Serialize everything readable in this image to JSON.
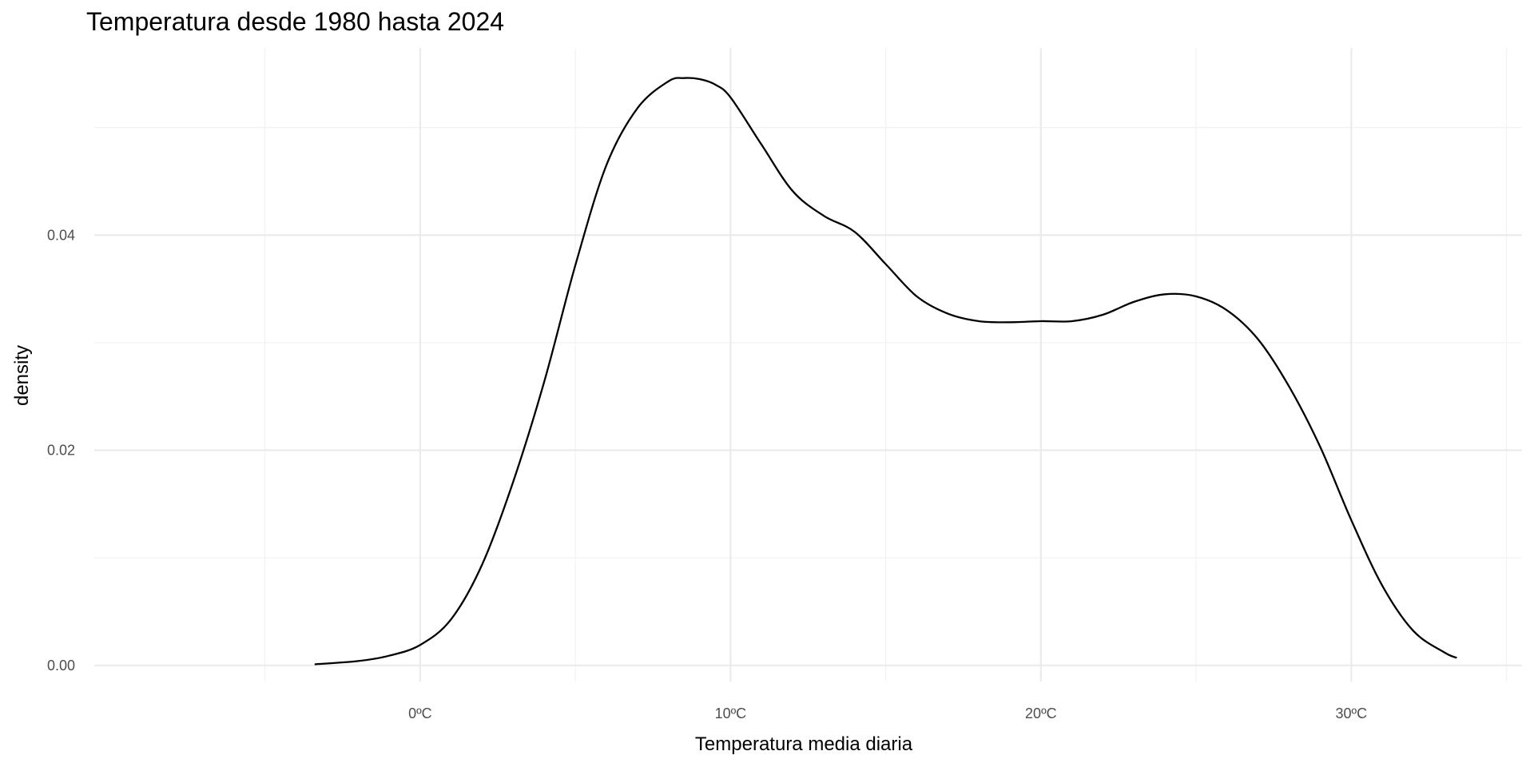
{
  "chart_data": {
    "type": "line",
    "title": "Temperatura desde 1980 hasta 2024",
    "xlabel": "Temperatura media diaria",
    "ylabel": "density",
    "xlim": [
      -10.5,
      35.5
    ],
    "ylim": [
      -0.0015,
      0.0574
    ],
    "x_ticks": [
      {
        "value": 0,
        "label": "0ºC"
      },
      {
        "value": 10,
        "label": "10ºC"
      },
      {
        "value": 20,
        "label": "20ºC"
      },
      {
        "value": 30,
        "label": "30ºC"
      }
    ],
    "x_minor_ticks": [
      -5,
      5,
      15,
      25,
      35
    ],
    "y_ticks": [
      {
        "value": 0.0,
        "label": "0.00"
      },
      {
        "value": 0.02,
        "label": "0.02"
      },
      {
        "value": 0.04,
        "label": "0.04"
      }
    ],
    "y_minor_ticks": [
      0.01,
      0.03,
      0.05
    ],
    "grid": true,
    "line_color": "#000000",
    "grid_major_color": "#ebebeb",
    "grid_minor_color": "#f2f2f2",
    "series": [
      {
        "x": [
          -3.4,
          -2,
          -1,
          0,
          1,
          2,
          3,
          4,
          5,
          6,
          7,
          8,
          8.5,
          9,
          9.5,
          10,
          11,
          12,
          13,
          14,
          15,
          16,
          17,
          18,
          19,
          20,
          21,
          22,
          23,
          24,
          25,
          26,
          27,
          28,
          29,
          30,
          31,
          32,
          33,
          33.4
        ],
        "y": [
          0.0001,
          0.0004,
          0.0009,
          0.0019,
          0.0043,
          0.0094,
          0.0171,
          0.0264,
          0.0372,
          0.0465,
          0.0518,
          0.0543,
          0.0546,
          0.0545,
          0.054,
          0.0528,
          0.0484,
          0.0441,
          0.0418,
          0.0403,
          0.0373,
          0.0343,
          0.0327,
          0.032,
          0.0319,
          0.032,
          0.032,
          0.0326,
          0.0338,
          0.0345,
          0.0343,
          0.033,
          0.0303,
          0.0259,
          0.0203,
          0.0135,
          0.0074,
          0.0032,
          0.0012,
          0.0007
        ]
      }
    ]
  }
}
